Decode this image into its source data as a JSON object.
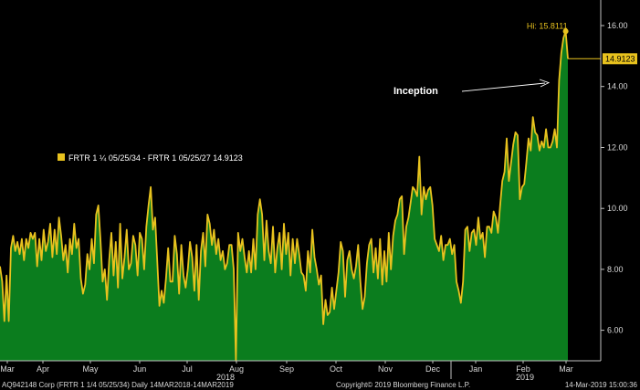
{
  "chart_data": {
    "type": "area",
    "series": [
      {
        "name": "FRTR 1 ¼ 05/25/34 - FRTR 1 05/25/27",
        "values": [
          8.1,
          7.6,
          6.3,
          7.8,
          6.3,
          8.7,
          9.1,
          8.6,
          8.9,
          8.5,
          9.0,
          8.3,
          9.0,
          8.7,
          9.2,
          9.0,
          9.2,
          8.1,
          9.0,
          8.3,
          9.3,
          8.6,
          8.9,
          9.5,
          8.4,
          9.3,
          8.5,
          9.7,
          9.1,
          8.3,
          8.8,
          7.9,
          9.0,
          8.5,
          9.5,
          8.7,
          9.0,
          7.7,
          7.2,
          7.5,
          8.5,
          8.0,
          9.0,
          8.2,
          9.8,
          10.1,
          9.0,
          7.6,
          8.0,
          7.0,
          8.3,
          9.2,
          7.8,
          8.9,
          7.4,
          9.5,
          7.7,
          8.4,
          9.3,
          8.0,
          8.2,
          9.1,
          8.8,
          7.8,
          9.2,
          9.0,
          8.0,
          9.4,
          10.1,
          10.7,
          9.3,
          9.7,
          8.3,
          6.8,
          7.3,
          6.9,
          7.7,
          8.7,
          7.6,
          7.6,
          9.1,
          8.5,
          7.2,
          8.8,
          7.8,
          7.4,
          8.0,
          8.9,
          8.4,
          7.3,
          8.8,
          7.0,
          8.6,
          9.2,
          8.1,
          9.8,
          9.5,
          8.8,
          9.3,
          8.5,
          9.0,
          8.3,
          8.6,
          8.0,
          8.2,
          8.8,
          8.8,
          8.0,
          5.0,
          9.2,
          8.6,
          9.0,
          8.4,
          7.9,
          8.6,
          7.9,
          9.0,
          8.0,
          9.8,
          10.3,
          9.8,
          8.3,
          9.6,
          8.6,
          8.2,
          9.4,
          7.9,
          8.7,
          9.2,
          8.0,
          9.5,
          8.5,
          9.2,
          7.8,
          9.0,
          8.2,
          9.0,
          8.5,
          7.9,
          7.8,
          7.3,
          8.6,
          7.9,
          9.3,
          8.4,
          8.0,
          7.5,
          7.8,
          6.2,
          7.0,
          6.5,
          6.6,
          7.4,
          6.7,
          7.3,
          7.9,
          8.9,
          8.6,
          7.1,
          8.3,
          8.6,
          8.0,
          7.7,
          8.1,
          8.8,
          7.6,
          6.7,
          7.1,
          8.2,
          8.8,
          9.0,
          7.9,
          8.7,
          7.7,
          9.0,
          7.5,
          8.6,
          7.6,
          9.2,
          8.0,
          9.1,
          9.6,
          9.8,
          10.3,
          10.4,
          8.5,
          9.4,
          9.7,
          10.2,
          10.7,
          10.6,
          10.4,
          11.7,
          9.8,
          10.7,
          10.3,
          10.6,
          10.7,
          10.1,
          9.0,
          8.8,
          8.6,
          9.1,
          8.3,
          8.8,
          8.8,
          9.0,
          8.5,
          8.8,
          7.6,
          7.3,
          6.9,
          7.6,
          9.3,
          9.4,
          8.6,
          9.2,
          9.3,
          8.8,
          9.7,
          9.0,
          9.2,
          8.4,
          9.4,
          9.4,
          9.2,
          9.9,
          9.7,
          9.2,
          10.1,
          10.9,
          11.2,
          12.3,
          10.9,
          11.5,
          12.1,
          12.5,
          12.4,
          10.3,
          10.7,
          10.8,
          11.5,
          12.3,
          11.9,
          13.0,
          12.5,
          12.4,
          11.9,
          12.2,
          12.0,
          12.6,
          12.0,
          12.0,
          12.2,
          12.6,
          12.0,
          14.2,
          15.1,
          15.6,
          15.8111,
          14.9123
        ]
      }
    ],
    "x_tick_labels": [
      "Mar",
      "Apr",
      "May",
      "Jun",
      "Jul",
      "Aug",
      "Sep",
      "Oct",
      "Nov",
      "Dec",
      "Jan",
      "Feb",
      "Mar"
    ],
    "year_labels": [
      "2018",
      "2019"
    ],
    "y_tick_labels": [
      "6.00",
      "8.00",
      "10.00",
      "12.00",
      "14.00",
      "16.00"
    ],
    "ylim": [
      5.0,
      16.6
    ],
    "y_ticks": [
      6,
      8,
      10,
      12,
      14,
      16
    ],
    "high_label": "Hi: 15.8111",
    "last_value_label": "14.9123",
    "annotation": "Inception",
    "legend_label": "FRTR 1 ¼ 05/25/34 - FRTR 1 05/25/27 14.9123",
    "colors": {
      "line": "#e8c21e",
      "fill": "#0b7d1e",
      "background": "#000000",
      "axis": "#bfbfbf",
      "text": "#d9d9d9"
    },
    "grid": false,
    "legend_position": "left"
  },
  "footer": {
    "left": "AQ942148 Corp (FRTR 1 1/4 05/25/34)  Daily 14MAR2018-14MAR2019",
    "center": "Copyright© 2019 Bloomberg Finance L.P.",
    "right": "14-Mar-2019 15:00:36"
  }
}
